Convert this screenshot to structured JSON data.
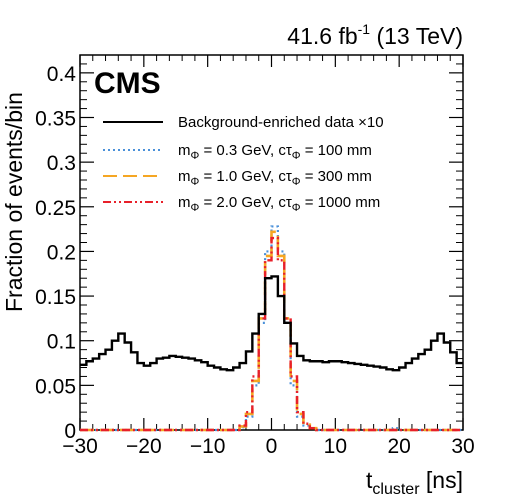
{
  "chart_data": {
    "type": "line",
    "experiment_label": "CMS",
    "lumi_label": "41.6 fb",
    "lumi_exponent": "-1",
    "lumi_energy": " (13 TeV)",
    "xlabel_main": "t",
    "xlabel_sub": "cluster",
    "xlabel_unit": " [ns]",
    "ylabel": "Fraction of events/bin",
    "xlim": [
      -30,
      30
    ],
    "ylim": [
      0,
      0.42
    ],
    "x_ticks": [
      -30,
      -20,
      -10,
      0,
      10,
      20,
      30
    ],
    "x_tick_labels": [
      "−30",
      "−20",
      "−10",
      "0",
      "10",
      "20",
      "30"
    ],
    "y_ticks": [
      0,
      0.05,
      0.1,
      0.15,
      0.2,
      0.25,
      0.3,
      0.35,
      0.4
    ],
    "y_tick_labels": [
      "0",
      "0.05",
      "0.1",
      "0.15",
      "0.2",
      "0.25",
      "0.3",
      "0.35",
      "0.4"
    ],
    "bin_width": 1,
    "bin_edges_start": -30,
    "legend_placement": "top",
    "series": [
      {
        "name": "Background-enriched data ×10",
        "color": "#000000",
        "style": "solid",
        "values": [
          0.073,
          0.077,
          0.08,
          0.085,
          0.09,
          0.1,
          0.108,
          0.098,
          0.087,
          0.075,
          0.072,
          0.075,
          0.08,
          0.081,
          0.083,
          0.082,
          0.081,
          0.08,
          0.078,
          0.076,
          0.072,
          0.07,
          0.068,
          0.067,
          0.07,
          0.075,
          0.088,
          0.108,
          0.13,
          0.17,
          0.172,
          0.15,
          0.12,
          0.097,
          0.083,
          0.078,
          0.077,
          0.077,
          0.076,
          0.077,
          0.077,
          0.076,
          0.075,
          0.074,
          0.073,
          0.072,
          0.071,
          0.07,
          0.068,
          0.067,
          0.07,
          0.075,
          0.08,
          0.085,
          0.09,
          0.1,
          0.108,
          0.098,
          0.087,
          0.075
        ]
      },
      {
        "name_part1": "m",
        "name_sub1": "Φ",
        "name_part2": " = 0.3 GeV, cτ",
        "name_sub2": "Φ",
        "name_part3": " = 100 mm",
        "color": "#4a90d9",
        "style": "dotted",
        "values": [
          0,
          0,
          0,
          0,
          0,
          0,
          0,
          0,
          0,
          0,
          0,
          0,
          0,
          0,
          0,
          0,
          0,
          0,
          0,
          0,
          0,
          0,
          0,
          0,
          0,
          0.003,
          0.015,
          0.05,
          0.12,
          0.2,
          0.228,
          0.2,
          0.12,
          0.05,
          0.015,
          0.005,
          0.002,
          0,
          0,
          0,
          0,
          0,
          0,
          0,
          0,
          0,
          0,
          0,
          0,
          0.002,
          0,
          0,
          0,
          0,
          0,
          0,
          0,
          0,
          0,
          0
        ]
      },
      {
        "name_part1": "m",
        "name_sub1": "Φ",
        "name_part2": " = 1.0 GeV, cτ",
        "name_sub2": "Φ",
        "name_part3": " = 300 mm",
        "color": "#f5a623",
        "style": "dashed",
        "values": [
          0,
          0,
          0,
          0,
          0,
          0,
          0,
          0,
          0,
          0,
          0,
          0,
          0,
          0,
          0,
          0,
          0,
          0,
          0,
          0,
          0,
          0,
          0,
          0,
          0,
          0.004,
          0.018,
          0.055,
          0.125,
          0.195,
          0.222,
          0.195,
          0.125,
          0.055,
          0.018,
          0.006,
          0.002,
          0,
          0,
          0,
          0,
          0,
          0,
          0,
          0,
          0,
          0,
          0,
          0,
          0,
          0,
          0,
          0,
          0,
          0,
          0,
          0,
          0,
          0,
          0
        ]
      },
      {
        "name_part1": "m",
        "name_sub1": "Φ",
        "name_part2": " = 2.0 GeV, cτ",
        "name_sub2": "Φ",
        "name_part3": " = 1000 mm",
        "color": "#e8202a",
        "style": "dashdot",
        "values": [
          0,
          0,
          0,
          0,
          0,
          0,
          0,
          0,
          0,
          0,
          0,
          0,
          0,
          0,
          0,
          0,
          0,
          0,
          0,
          0,
          0,
          0,
          0,
          0,
          0,
          0.005,
          0.02,
          0.06,
          0.125,
          0.19,
          0.215,
          0.19,
          0.125,
          0.06,
          0.02,
          0.007,
          0.002,
          0,
          0,
          0,
          0,
          0,
          0,
          0,
          0,
          0,
          0,
          0,
          0,
          0,
          0,
          0,
          0,
          0,
          0,
          0,
          0,
          0,
          0,
          0
        ]
      }
    ]
  }
}
